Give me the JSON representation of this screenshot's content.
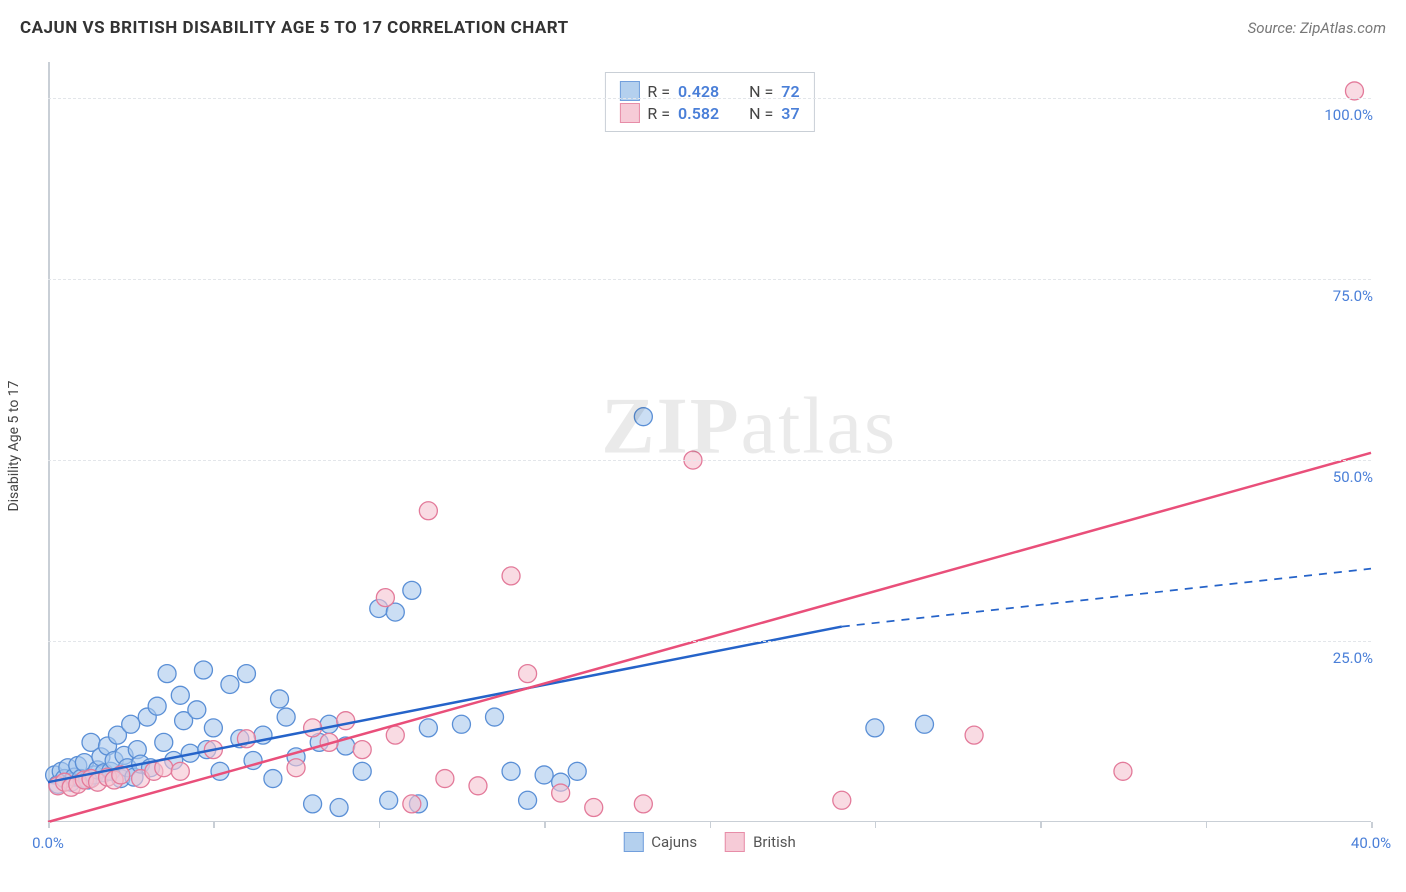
{
  "title": "CAJUN VS BRITISH DISABILITY AGE 5 TO 17 CORRELATION CHART",
  "source": "Source: ZipAtlas.com",
  "y_axis_title": "Disability Age 5 to 17",
  "watermark_bold": "ZIP",
  "watermark_rest": "atlas",
  "chart": {
    "type": "scatter",
    "xlim": [
      0,
      40
    ],
    "ylim": [
      0,
      105
    ],
    "x_tick_step": 5,
    "x_tick_labels": {
      "0": "0.0%",
      "40": "40.0%"
    },
    "y_ticks": [
      25,
      50,
      75,
      100
    ],
    "y_tick_labels": {
      "25": "25.0%",
      "50": "50.0%",
      "75": "75.0%",
      "100": "100.0%"
    },
    "grid_color": "#e3e6ea",
    "axis_color": "#c9cfd6",
    "background_color": "#ffffff",
    "marker_radius": 9,
    "marker_stroke_width": 1.3,
    "line_width": 2.5,
    "series": [
      {
        "name": "Cajuns",
        "fill": "#a8c8ec",
        "stroke": "#5a8fd6",
        "fill_opacity": 0.6,
        "line_color": "#2563c9",
        "trend": {
          "x0": 0,
          "y0": 5.5,
          "x1_solid": 24,
          "y1_solid": 27,
          "x1_dash": 40,
          "y1_dash": 35
        },
        "R": "0.428",
        "N": "72",
        "points": [
          [
            0.2,
            6.5
          ],
          [
            0.3,
            5.2
          ],
          [
            0.4,
            7.0
          ],
          [
            0.5,
            6.0
          ],
          [
            0.6,
            7.5
          ],
          [
            0.7,
            5.5
          ],
          [
            0.8,
            6.2
          ],
          [
            0.9,
            7.8
          ],
          [
            1.0,
            6.0
          ],
          [
            1.1,
            8.2
          ],
          [
            1.2,
            5.8
          ],
          [
            1.3,
            11.0
          ],
          [
            1.4,
            6.5
          ],
          [
            1.5,
            7.2
          ],
          [
            1.6,
            9.0
          ],
          [
            1.7,
            6.8
          ],
          [
            1.8,
            10.5
          ],
          [
            1.9,
            7.0
          ],
          [
            2.0,
            8.5
          ],
          [
            2.1,
            12.0
          ],
          [
            2.2,
            6.0
          ],
          [
            2.3,
            9.2
          ],
          [
            2.4,
            7.5
          ],
          [
            2.5,
            13.5
          ],
          [
            2.6,
            6.2
          ],
          [
            2.7,
            10.0
          ],
          [
            2.8,
            8.0
          ],
          [
            3.0,
            14.5
          ],
          [
            3.1,
            7.5
          ],
          [
            3.3,
            16.0
          ],
          [
            3.5,
            11.0
          ],
          [
            3.6,
            20.5
          ],
          [
            3.8,
            8.5
          ],
          [
            4.0,
            17.5
          ],
          [
            4.1,
            14.0
          ],
          [
            4.3,
            9.5
          ],
          [
            4.5,
            15.5
          ],
          [
            4.7,
            21.0
          ],
          [
            4.8,
            10.0
          ],
          [
            5.0,
            13.0
          ],
          [
            5.2,
            7.0
          ],
          [
            5.5,
            19.0
          ],
          [
            5.8,
            11.5
          ],
          [
            6.0,
            20.5
          ],
          [
            6.2,
            8.5
          ],
          [
            6.5,
            12.0
          ],
          [
            6.8,
            6.0
          ],
          [
            7.0,
            17.0
          ],
          [
            7.2,
            14.5
          ],
          [
            7.5,
            9.0
          ],
          [
            8.0,
            2.5
          ],
          [
            8.2,
            11.0
          ],
          [
            8.5,
            13.5
          ],
          [
            8.8,
            2.0
          ],
          [
            9.0,
            10.5
          ],
          [
            9.5,
            7.0
          ],
          [
            10.0,
            29.5
          ],
          [
            10.3,
            3.0
          ],
          [
            10.5,
            29.0
          ],
          [
            11.0,
            32.0
          ],
          [
            11.2,
            2.5
          ],
          [
            11.5,
            13.0
          ],
          [
            12.5,
            13.5
          ],
          [
            13.5,
            14.5
          ],
          [
            14.0,
            7.0
          ],
          [
            14.5,
            3.0
          ],
          [
            15.0,
            6.5
          ],
          [
            15.5,
            5.5
          ],
          [
            16.0,
            7.0
          ],
          [
            18.0,
            56.0
          ],
          [
            25.0,
            13.0
          ],
          [
            26.5,
            13.5
          ]
        ]
      },
      {
        "name": "British",
        "fill": "#f5c3d1",
        "stroke": "#e37a9a",
        "fill_opacity": 0.6,
        "line_color": "#e94f7a",
        "trend": {
          "x0": 0,
          "y0": 0,
          "x1_solid": 40,
          "y1_solid": 51,
          "x1_dash": 40,
          "y1_dash": 51
        },
        "R": "0.582",
        "N": "37",
        "points": [
          [
            0.3,
            5.0
          ],
          [
            0.5,
            5.5
          ],
          [
            0.7,
            4.8
          ],
          [
            0.9,
            5.2
          ],
          [
            1.1,
            5.8
          ],
          [
            1.3,
            6.0
          ],
          [
            1.5,
            5.5
          ],
          [
            1.8,
            6.2
          ],
          [
            2.0,
            5.8
          ],
          [
            2.2,
            6.5
          ],
          [
            2.8,
            6.0
          ],
          [
            3.2,
            7.0
          ],
          [
            3.5,
            7.5
          ],
          [
            4.0,
            7.0
          ],
          [
            5.0,
            10.0
          ],
          [
            6.0,
            11.5
          ],
          [
            7.5,
            7.5
          ],
          [
            8.0,
            13.0
          ],
          [
            8.5,
            11.0
          ],
          [
            9.0,
            14.0
          ],
          [
            9.5,
            10.0
          ],
          [
            10.2,
            31.0
          ],
          [
            10.5,
            12.0
          ],
          [
            11.0,
            2.5
          ],
          [
            11.5,
            43.0
          ],
          [
            12.0,
            6.0
          ],
          [
            13.0,
            5.0
          ],
          [
            14.0,
            34.0
          ],
          [
            14.5,
            20.5
          ],
          [
            16.5,
            2.0
          ],
          [
            18.0,
            2.5
          ],
          [
            19.5,
            50.0
          ],
          [
            24.0,
            3.0
          ],
          [
            28.0,
            12.0
          ],
          [
            32.5,
            7.0
          ],
          [
            39.5,
            101.0
          ],
          [
            15.5,
            4.0
          ]
        ]
      }
    ]
  },
  "legend_top": {
    "r_label": "R =",
    "n_label": "N ="
  },
  "bottom_legend": [
    "Cajuns",
    "British"
  ]
}
